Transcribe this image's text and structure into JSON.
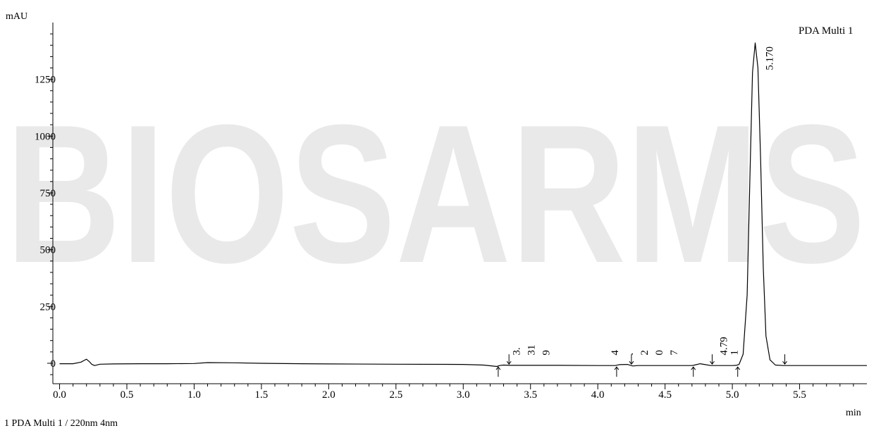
{
  "footer_note": "1 PDA Multi 1 / 220nm 4nm",
  "watermark": "BIOSARMS",
  "colors": {
    "trace": "#000000",
    "watermark": "#e9e9e9"
  },
  "chart_data": {
    "type": "line",
    "title": "",
    "legend": "PDA Multi 1",
    "legend_position": "top-right",
    "xlabel": "min",
    "ylabel": "mAU",
    "xlim": [
      -0.05,
      6.0
    ],
    "ylim": [
      -90,
      1500
    ],
    "x_ticks": [
      0.0,
      0.5,
      1.0,
      1.5,
      2.0,
      2.5,
      3.0,
      3.5,
      4.0,
      4.5,
      5.0,
      5.5
    ],
    "x_tick_labels": [
      "0.0",
      "0.5",
      "1.0",
      "1.5",
      "2.0",
      "2.5",
      "3.0",
      "3.5",
      "4.0",
      "4.5",
      "5.0",
      "5.5"
    ],
    "y_ticks": [
      0,
      250,
      500,
      750,
      1000,
      1250
    ],
    "y_tick_labels": [
      "0",
      "250",
      "500",
      "750",
      "1000",
      "1250"
    ],
    "grid": false,
    "series": [
      {
        "x": [
          0.0,
          0.1,
          0.16,
          0.18,
          0.2,
          0.22,
          0.24,
          0.26,
          0.3,
          0.4,
          0.6,
          0.8,
          1.0,
          1.1,
          1.3,
          1.5,
          1.8,
          2.0,
          2.5,
          3.0,
          3.15,
          3.25,
          3.27,
          3.3,
          3.35,
          3.5,
          3.7,
          4.0,
          4.13,
          4.16,
          4.22,
          4.26,
          4.3,
          4.4,
          4.6,
          4.7,
          4.72,
          4.76,
          4.8,
          4.84,
          4.9,
          5.0,
          5.03,
          5.05,
          5.08,
          5.11,
          5.13,
          5.15,
          5.17,
          5.19,
          5.21,
          5.23,
          5.25,
          5.28,
          5.32,
          5.38,
          5.5,
          5.7,
          6.0
        ],
        "y": [
          -2,
          -2,
          5,
          12,
          18,
          8,
          -5,
          -10,
          -4,
          -3,
          -2,
          -2,
          -1,
          3,
          2,
          0,
          -2,
          -3,
          -4,
          -5,
          -8,
          -14,
          -10,
          -8,
          -9,
          -9,
          -9,
          -10,
          -10,
          -6,
          -5,
          -12,
          -10,
          -10,
          -10,
          -10,
          -8,
          -2,
          -6,
          -10,
          -10,
          -10,
          -9,
          -5,
          40,
          300,
          800,
          1280,
          1410,
          1300,
          900,
          420,
          120,
          15,
          -8,
          -10,
          -10,
          -10,
          -10
        ]
      }
    ],
    "integration_markers": [
      {
        "x": 3.26,
        "dir": "up"
      },
      {
        "x": 3.34,
        "dir": "down"
      },
      {
        "x": 4.14,
        "dir": "up"
      },
      {
        "x": 4.25,
        "dir": "down"
      },
      {
        "x": 4.71,
        "dir": "up"
      },
      {
        "x": 4.85,
        "dir": "down"
      },
      {
        "x": 5.04,
        "dir": "up"
      },
      {
        "x": 5.39,
        "dir": "down"
      }
    ],
    "annotations": [
      {
        "text": "3.",
        "x": 3.42,
        "y": 35
      },
      {
        "text": "31",
        "x": 3.53,
        "y": 35
      },
      {
        "text": "9",
        "x": 3.64,
        "y": 35
      },
      {
        "text": "4",
        "x": 4.15,
        "y": 35
      },
      {
        "text": ".",
        "x": 4.26,
        "y": 35
      },
      {
        "text": "2",
        "x": 4.37,
        "y": 35
      },
      {
        "text": "0",
        "x": 4.48,
        "y": 35
      },
      {
        "text": "7",
        "x": 4.59,
        "y": 35
      },
      {
        "text": "4.79",
        "x": 4.96,
        "y": 35
      },
      {
        "text": "1",
        "x": 5.04,
        "y": 35
      },
      {
        "text": "5.170",
        "x": 5.3,
        "y": 1290
      }
    ]
  }
}
